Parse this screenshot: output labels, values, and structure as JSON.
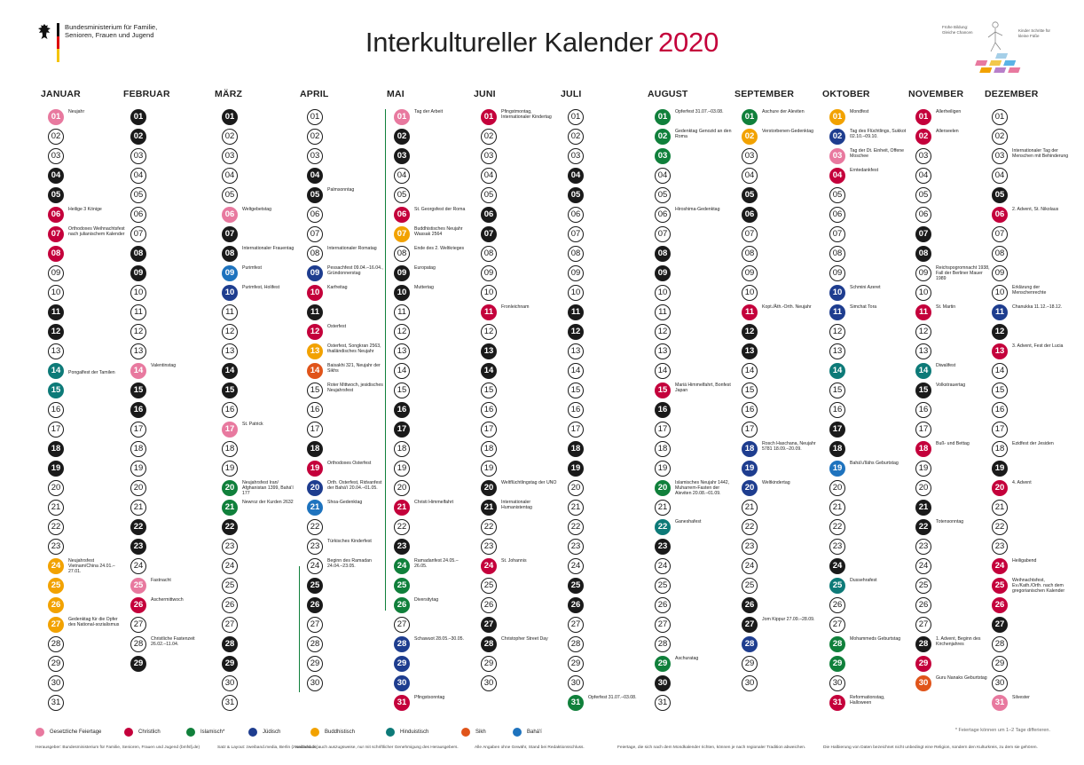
{
  "header": {
    "ministry": "Bundesministerium für Familie, Senioren, Frauen und Jugend",
    "title": "Interkultureller Kalender",
    "year": "2020",
    "brand_line1": "Frühe Bildung: Gleiche Chancen",
    "brand_line2": "Kinder Schritte für kleine Füße"
  },
  "colors": {
    "weekend": "#1a1a1a",
    "secular": "#e8799f",
    "christ": "#c4003b",
    "islam": "#10803b",
    "jew": "#1e3d8f",
    "bud": "#f2a200",
    "hindu": "#0d7a78",
    "sikh": "#e0541a",
    "bahai": "#1e73be"
  },
  "months": [
    {
      "name": "JANUAR",
      "days": 31,
      "weekend": [
        4,
        5,
        11,
        12,
        18,
        19,
        25,
        26
      ],
      "marks": {
        "1": "secular",
        "6": "christ",
        "7": "christ",
        "8": "christ",
        "14": "hindu",
        "15": "hindu",
        "24": "bud",
        "25": "bud",
        "26": "bud",
        "27": "bud"
      },
      "events": [
        {
          "d": 1,
          "t": "Neujahr"
        },
        {
          "d": 6,
          "t": "Heilige 3 Könige"
        },
        {
          "d": 7,
          "t": "Orthodoxes Weihnachtsfest nach julianischem Kalender"
        },
        {
          "d": 14,
          "t": "Pongalfest der Tamilen",
          "o": 8
        },
        {
          "d": 24,
          "t": "Neujahrsfest Vietnam/China 24.01.–27.01."
        },
        {
          "d": 27,
          "t": "Gedenktag für die Opfer des National-sozialismus"
        }
      ]
    },
    {
      "name": "FEBRUAR",
      "days": 29,
      "weekend": [
        1,
        2,
        8,
        9,
        15,
        16,
        22,
        23,
        29
      ],
      "marks": {
        "14": "secular",
        "25": "secular",
        "26": "christ"
      },
      "events": [
        {
          "d": 14,
          "t": "Valentinstag"
        },
        {
          "d": 25,
          "t": "Fastnacht"
        },
        {
          "d": 26,
          "t": "Aschermittwoch"
        },
        {
          "d": 28,
          "t": "Christliche Fastenzeit 26.02.–11.04."
        }
      ]
    },
    {
      "name": "MÄRZ",
      "days": 31,
      "weekend": [
        1,
        7,
        8,
        14,
        15,
        21,
        22,
        28,
        29
      ],
      "marks": {
        "6": "secular",
        "9": "bahai",
        "10": "jew",
        "17": "secular",
        "20": "islam",
        "21": "islam"
      },
      "events": [
        {
          "d": 6,
          "t": "Weltgebetstag"
        },
        {
          "d": 8,
          "t": "Internationaler Frauentag"
        },
        {
          "d": 9,
          "t": "Purimfest"
        },
        {
          "d": 10,
          "t": "Purimfest, Holifest"
        },
        {
          "d": 17,
          "t": "St. Patrick"
        },
        {
          "d": 20,
          "t": "Neujahrsfest Iran/ Afghanistan 1399, Bahá'í 177"
        },
        {
          "d": 21,
          "t": "Newroz der Kurden 2632"
        }
      ]
    },
    {
      "name": "APRIL",
      "days": 30,
      "weekend": [
        4,
        5,
        11,
        12,
        18,
        19,
        25,
        26
      ],
      "marks": {
        "9": "jew",
        "10": "christ",
        "12": "christ",
        "13": "bud",
        "14": "sikh",
        "19": "christ",
        "20": "jew",
        "21": "bahai"
      },
      "events": [
        {
          "d": 5,
          "t": "Palmsonntag"
        },
        {
          "d": 8,
          "t": "Internationaler Romatag"
        },
        {
          "d": 9,
          "t": "Pessachfest 09.04.–16.04., Gründonnerstag"
        },
        {
          "d": 10,
          "t": "Karfreitag"
        },
        {
          "d": 12,
          "t": "Osterfest"
        },
        {
          "d": 13,
          "t": "Osterfest, Songkran 2563, thailändisches Neujahr"
        },
        {
          "d": 14,
          "t": "Baisakhi 321, Neujahr der Sikhs"
        },
        {
          "d": 15,
          "t": "Roter Mittwoch, jesidisches Neujahrsfest"
        },
        {
          "d": 19,
          "t": "Orthodoxes Osterfest"
        },
        {
          "d": 20,
          "t": "Orth. Osterfest, Ridvanfest der Bahá'í 20.04.–01.05."
        },
        {
          "d": 21,
          "t": "Shoa-Gedenktag"
        },
        {
          "d": 23,
          "t": "Türkisches Kinderfest"
        },
        {
          "d": 24,
          "t": "Beginn des Ramadan 24.04.–23.05."
        }
      ]
    },
    {
      "name": "MAI",
      "days": 31,
      "weekend": [
        2,
        3,
        9,
        10,
        16,
        17,
        23,
        24,
        30,
        31
      ],
      "marks": {
        "1": "secular",
        "6": "christ",
        "7": "bud",
        "21": "christ",
        "24": "islam",
        "25": "islam",
        "26": "islam",
        "28": "jew",
        "29": "jew",
        "30": "jew",
        "31": "christ"
      },
      "events": [
        {
          "d": 1,
          "t": "Tag der Arbeit"
        },
        {
          "d": 6,
          "t": "St. Georgsfest der Roma"
        },
        {
          "d": 7,
          "t": "Buddhistisches Neujahr Wassak 2564"
        },
        {
          "d": 8,
          "t": "Ende des 2. Weltkrieges"
        },
        {
          "d": 9,
          "t": "Europatag"
        },
        {
          "d": 10,
          "t": "Muttertag"
        },
        {
          "d": 21,
          "t": "Christi Himmelfahrt"
        },
        {
          "d": 24,
          "t": "Ramadanfest 24.05.–26.05."
        },
        {
          "d": 26,
          "t": "Diversitytag"
        },
        {
          "d": 28,
          "t": "Schawuot 28.05.–30.05."
        },
        {
          "d": 31,
          "t": "Pfingstsonntag"
        }
      ]
    },
    {
      "name": "JUNI",
      "days": 30,
      "weekend": [
        6,
        7,
        13,
        14,
        20,
        21,
        27,
        28
      ],
      "marks": {
        "1": "christ",
        "11": "christ",
        "24": "christ"
      },
      "events": [
        {
          "d": 1,
          "t": "Pfingstmontag, Internationaler Kindertag"
        },
        {
          "d": 11,
          "t": "Fronleichnam"
        },
        {
          "d": 20,
          "t": "Weltflüchtlingstag der UNO"
        },
        {
          "d": 21,
          "t": "Internationaler Humanistentag"
        },
        {
          "d": 24,
          "t": "St. Johannis"
        },
        {
          "d": 28,
          "t": "Christopher Street Day"
        }
      ]
    },
    {
      "name": "JULI",
      "days": 31,
      "weekend": [
        4,
        5,
        11,
        12,
        18,
        19,
        25,
        26
      ],
      "marks": {
        "31": "islam"
      },
      "events": [
        {
          "d": 31,
          "t": "Opferfest 31.07.–03.08."
        }
      ]
    },
    {
      "name": "AUGUST",
      "days": 31,
      "weekend": [
        1,
        2,
        8,
        9,
        15,
        16,
        22,
        23,
        29,
        30
      ],
      "marks": {
        "1": "islam",
        "2": "islam",
        "3": "islam",
        "15": "christ",
        "20": "islam",
        "22": "hindu",
        "29": "islam"
      },
      "events": [
        {
          "d": 1,
          "t": "Opferfest 31.07.–03.08."
        },
        {
          "d": 2,
          "t": "Gedenktag Genozid an den Roma"
        },
        {
          "d": 6,
          "t": "Hiroshima-Gedenktag"
        },
        {
          "d": 15,
          "t": "Mariä Himmelfahrt, Bonfest Japan"
        },
        {
          "d": 20,
          "t": "Islamisches Neujahr 1442, Muharrem-Fasten der Aleviten 20.08.–01.09."
        },
        {
          "d": 22,
          "t": "Ganeshafest"
        },
        {
          "d": 29,
          "t": "Aschuratag"
        }
      ]
    },
    {
      "name": "SEPTEMBER",
      "days": 30,
      "weekend": [
        5,
        6,
        12,
        13,
        19,
        20,
        26,
        27
      ],
      "marks": {
        "1": "islam",
        "2": "bud",
        "11": "christ",
        "18": "jew",
        "19": "jew",
        "20": "jew",
        "28": "jew"
      },
      "events": [
        {
          "d": 1,
          "t": "Aschure der Aleviten"
        },
        {
          "d": 2,
          "t": "Verstorbenen-Gedenktag"
        },
        {
          "d": 11,
          "t": "Kopt./Äth.-Orth. Neujahr"
        },
        {
          "d": 18,
          "t": "Rosch Haschana, Neujahr 5781 18.09.–20.09."
        },
        {
          "d": 20,
          "t": "Weltkindertag"
        },
        {
          "d": 27,
          "t": "Jom Kippur 27.09.–28.09."
        }
      ]
    },
    {
      "name": "OKTOBER",
      "days": 31,
      "weekend": [
        3,
        4,
        10,
        11,
        17,
        18,
        24,
        25,
        31
      ],
      "marks": {
        "1": "bud",
        "2": "jew",
        "3": "secular",
        "4": "christ",
        "10": "jew",
        "11": "jew",
        "14": "hindu",
        "19": "bahai",
        "25": "hindu",
        "28": "islam",
        "29": "islam",
        "31": "christ"
      },
      "events": [
        {
          "d": 1,
          "t": "Mondfest"
        },
        {
          "d": 2,
          "t": "Tag des Flüchtlings, Sukkot 02.10.–09.10."
        },
        {
          "d": 3,
          "t": "Tag der Dt. Einheit, Offene Moschee"
        },
        {
          "d": 4,
          "t": "Erntedankfest"
        },
        {
          "d": 10,
          "t": "Schmini Azeret"
        },
        {
          "d": 11,
          "t": "Simchat Tora"
        },
        {
          "d": 19,
          "t": "Bahá'u'lláhs Geburtstag"
        },
        {
          "d": 25,
          "t": "Dussehrafest"
        },
        {
          "d": 28,
          "t": "Mohammeds Geburtstag"
        },
        {
          "d": 31,
          "t": "Reformationstag, Halloween"
        }
      ]
    },
    {
      "name": "NOVEMBER",
      "days": 30,
      "weekend": [
        1,
        7,
        8,
        14,
        15,
        21,
        22,
        28,
        29
      ],
      "marks": {
        "1": "christ",
        "2": "christ",
        "11": "christ",
        "14": "hindu",
        "18": "christ",
        "29": "christ",
        "30": "sikh"
      },
      "events": [
        {
          "d": 1,
          "t": "Allerheiligen"
        },
        {
          "d": 2,
          "t": "Allerseelen"
        },
        {
          "d": 9,
          "t": "Reichspogromnacht 1938, Fall der Berliner Mauer 1989"
        },
        {
          "d": 11,
          "t": "St. Martin"
        },
        {
          "d": 14,
          "t": "Diwalifest"
        },
        {
          "d": 15,
          "t": "Volkstrauertag"
        },
        {
          "d": 18,
          "t": "Buß- und Bettag"
        },
        {
          "d": 22,
          "t": "Totensonntag"
        },
        {
          "d": 28,
          "t": "1. Advent, Beginn des Kirchenjahres"
        },
        {
          "d": 30,
          "t": "Guru Nanaks Geburtstag"
        }
      ]
    },
    {
      "name": "DEZEMBER",
      "days": 31,
      "weekend": [
        5,
        6,
        12,
        13,
        19,
        20,
        26,
        27
      ],
      "marks": {
        "6": "christ",
        "11": "jew",
        "13": "christ",
        "20": "christ",
        "24": "christ",
        "25": "christ",
        "26": "christ",
        "31": "secular"
      },
      "events": [
        {
          "d": 3,
          "t": "Internationaler Tag der Menschen mit Behinderung"
        },
        {
          "d": 6,
          "t": "2. Advent, St. Nikolaus"
        },
        {
          "d": 10,
          "t": "Erklärung der Menschenrechte"
        },
        {
          "d": 11,
          "t": "Chanukka 11.12.–18.12."
        },
        {
          "d": 13,
          "t": "3. Advent, Fest der Lucia"
        },
        {
          "d": 18,
          "t": "Ezidfest der Jesiden"
        },
        {
          "d": 20,
          "t": "4. Advent"
        },
        {
          "d": 24,
          "t": "Heiligabend"
        },
        {
          "d": 25,
          "t": "Weihnachtsfest, Ev./Kath./Orth. nach dem gregorianischen Kalender"
        },
        {
          "d": 31,
          "t": "Silvester"
        }
      ]
    }
  ],
  "legend": [
    {
      "label": "Gesetzliche Feiertage",
      "color": "secular"
    },
    {
      "label": "Christlich",
      "color": "christ"
    },
    {
      "label": "Islamisch*",
      "color": "islam"
    },
    {
      "label": "Jüdisch",
      "color": "jew"
    },
    {
      "label": "Buddhistisch",
      "color": "bud"
    },
    {
      "label": "Hinduistisch",
      "color": "hindu"
    },
    {
      "label": "Sikh",
      "color": "sikh"
    },
    {
      "label": "Bahá'í",
      "color": "bahai"
    }
  ],
  "note": "* Feiertage können um 1–2 Tage differieren.",
  "footer": [
    "Herausgeber: Bundesministerium für Familie, Senioren, Frauen und Jugend (bmfsfj.de)",
    "Satz & Layout: zweiband.media, Berlin (zweiband.de)",
    "Nachdruck, auch auszugsweise, nur mit schriftlicher Genehmigung des Herausgebers.",
    "Alle Angaben ohne Gewähr, Stand bei Redaktionsschluss.",
    "Feiertage, die sich nach dem Mondkalender richten, können je nach regionaler Tradition abweichen.",
    "Die Halbierung von Daten bezeichnet nicht unbedingt eine Religion, sondern den Kulturkreis, zu dem sie gehören."
  ]
}
